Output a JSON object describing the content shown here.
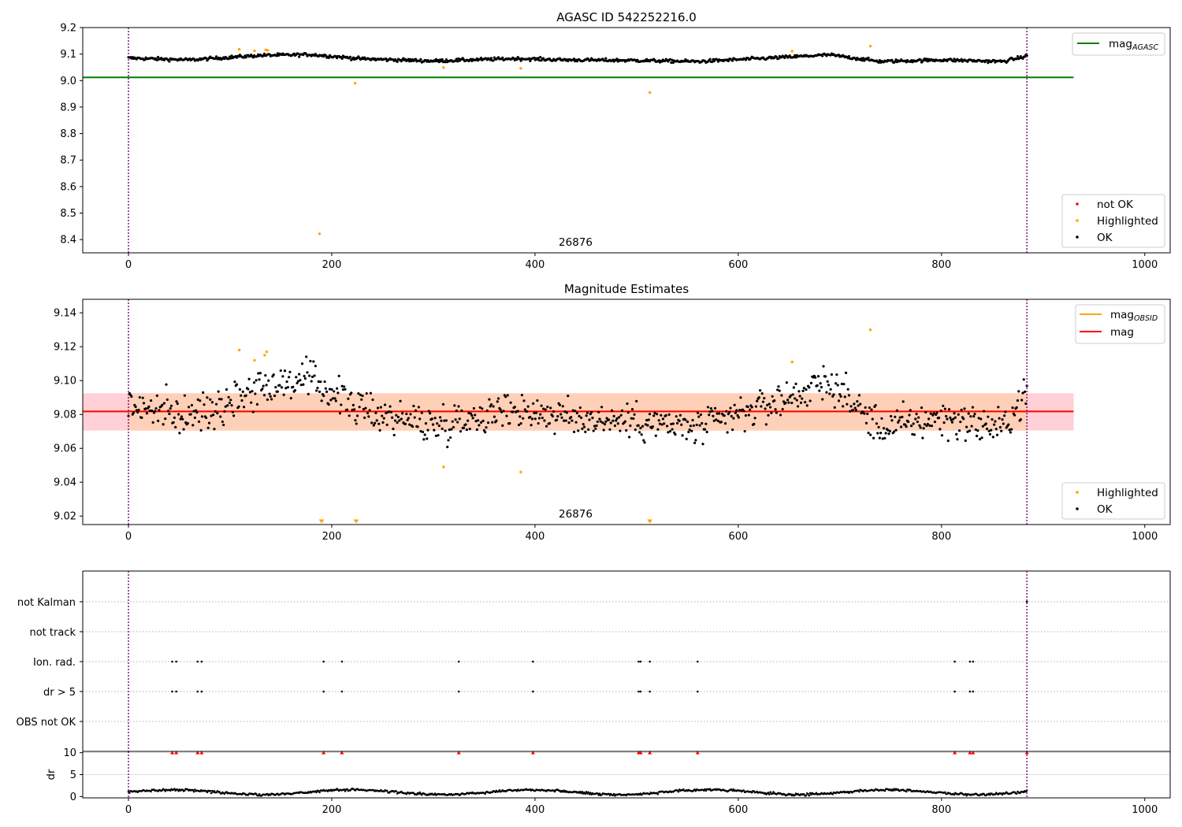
{
  "chart_data": [
    {
      "type": "scatter",
      "panel": "top",
      "title": "AGASC ID 542252216.0",
      "xlim": [
        -45,
        1025
      ],
      "ylim": [
        8.35,
        9.2
      ],
      "xticks": [
        "0",
        "200",
        "400",
        "600",
        "800",
        "1000"
      ],
      "yticks": [
        "8.4",
        "8.5",
        "8.6",
        "8.7",
        "8.8",
        "8.9",
        "9.0",
        "9.1",
        "9.2"
      ],
      "obsid_label": "26876",
      "vlines_x": [
        0,
        884
      ],
      "reference_lines": [
        {
          "name": "mag",
          "subscript": "AGASC",
          "y": 9.012,
          "x_range": [
            -45,
            930
          ],
          "color": "#008000"
        }
      ],
      "series": [
        {
          "name": "not OK",
          "color": "#ff0000",
          "points": []
        },
        {
          "name": "Highlighted",
          "color": "#ffa500",
          "points": [
            [
              109,
              9.118
            ],
            [
              124,
              9.112
            ],
            [
              135,
              9.116
            ],
            [
              137,
              9.114
            ],
            [
              188,
              8.422
            ],
            [
              223,
              8.99
            ],
            [
              310,
              9.049
            ],
            [
              386,
              9.046
            ],
            [
              513,
              8.955
            ],
            [
              653,
              9.111
            ],
            [
              730,
              9.13
            ]
          ]
        },
        {
          "name": "OK",
          "color": "#000000"
        }
      ],
      "ok_trend": {
        "n": 880,
        "x_range": [
          0,
          884
        ],
        "mean": 9.081,
        "wave": [
          [
            0,
            9.085
          ],
          [
            60,
            9.078
          ],
          [
            130,
            9.095
          ],
          [
            180,
            9.098
          ],
          [
            230,
            9.082
          ],
          [
            300,
            9.074
          ],
          [
            380,
            9.083
          ],
          [
            430,
            9.078
          ],
          [
            500,
            9.076
          ],
          [
            560,
            9.072
          ],
          [
            620,
            9.083
          ],
          [
            690,
            9.097
          ],
          [
            740,
            9.072
          ],
          [
            800,
            9.078
          ],
          [
            860,
            9.072
          ],
          [
            884,
            9.092
          ]
        ]
      }
    },
    {
      "type": "scatter",
      "panel": "middle",
      "title": "Magnitude Estimates",
      "xlim": [
        -45,
        1025
      ],
      "ylim": [
        9.015,
        9.148
      ],
      "xticks": [
        "0",
        "200",
        "400",
        "600",
        "800",
        "1000"
      ],
      "yticks": [
        "9.02",
        "9.04",
        "9.06",
        "9.08",
        "9.10",
        "9.12",
        "9.14"
      ],
      "obsid_label": "26876",
      "vlines_x": [
        0,
        884
      ],
      "band": {
        "y_range": [
          9.0705,
          9.0925
        ],
        "x_range": [
          -45,
          930
        ],
        "colors": [
          "#ffd0d6",
          "#ffd0b8"
        ]
      },
      "reference_lines": [
        {
          "name": "mag",
          "subscript": "OBSID",
          "y": 9.0818,
          "x_range": [
            0,
            884
          ],
          "color": "#ffa500"
        },
        {
          "name": "mag",
          "subscript": "",
          "y": 9.0818,
          "x_range": [
            -45,
            930
          ],
          "color": "#ff0000"
        }
      ],
      "series": [
        {
          "name": "Highlighted",
          "color": "#ffa500",
          "points": [
            [
              109,
              9.118
            ],
            [
              124,
              9.112
            ],
            [
              134,
              9.115
            ],
            [
              136,
              9.117
            ],
            [
              310,
              9.049
            ],
            [
              386,
              9.046
            ],
            [
              653,
              9.111
            ],
            [
              730,
              9.13
            ]
          ]
        },
        {
          "name": "OK",
          "color": "#000000"
        }
      ],
      "offscale_markers_x": [
        190,
        224,
        513
      ],
      "ok_trend": {
        "n": 880,
        "x_range": [
          0,
          884
        ],
        "spread": 0.0105
      }
    },
    {
      "type": "scatter",
      "panel": "flags",
      "xlim": [
        -45,
        1025
      ],
      "categories": [
        "not Kalman",
        "not track",
        "Ion. rad.",
        "dr > 5",
        "OBS not OK"
      ],
      "vlines_x": [
        0,
        884
      ],
      "flag_points": {
        "not Kalman": [
          884
        ],
        "not track": [],
        "Ion. rad.": [
          43,
          47,
          68,
          72,
          192,
          210,
          325,
          398,
          502,
          504,
          513,
          560,
          813,
          828,
          831
        ],
        "dr > 5": [
          43,
          47,
          68,
          72,
          192,
          210,
          325,
          398,
          502,
          504,
          513,
          560,
          813,
          828,
          831
        ],
        "OBS not OK": []
      }
    },
    {
      "type": "scatter",
      "panel": "dr",
      "ylabel": "dr",
      "xlim": [
        -45,
        1025
      ],
      "ylim": [
        -0.3,
        10.3
      ],
      "xticks": [
        "0",
        "200",
        "400",
        "600",
        "800",
        "1000"
      ],
      "yticks": [
        "0",
        "5",
        "10"
      ],
      "vlines_x": [
        0,
        884
      ],
      "clipped_points_x": [
        43,
        47,
        68,
        72,
        192,
        210,
        325,
        398,
        502,
        504,
        513,
        560,
        813,
        828,
        831,
        884
      ],
      "ok_trend": {
        "n": 880,
        "x_range": [
          0,
          884
        ],
        "typical": 1.0,
        "max": 2.3
      }
    }
  ]
}
